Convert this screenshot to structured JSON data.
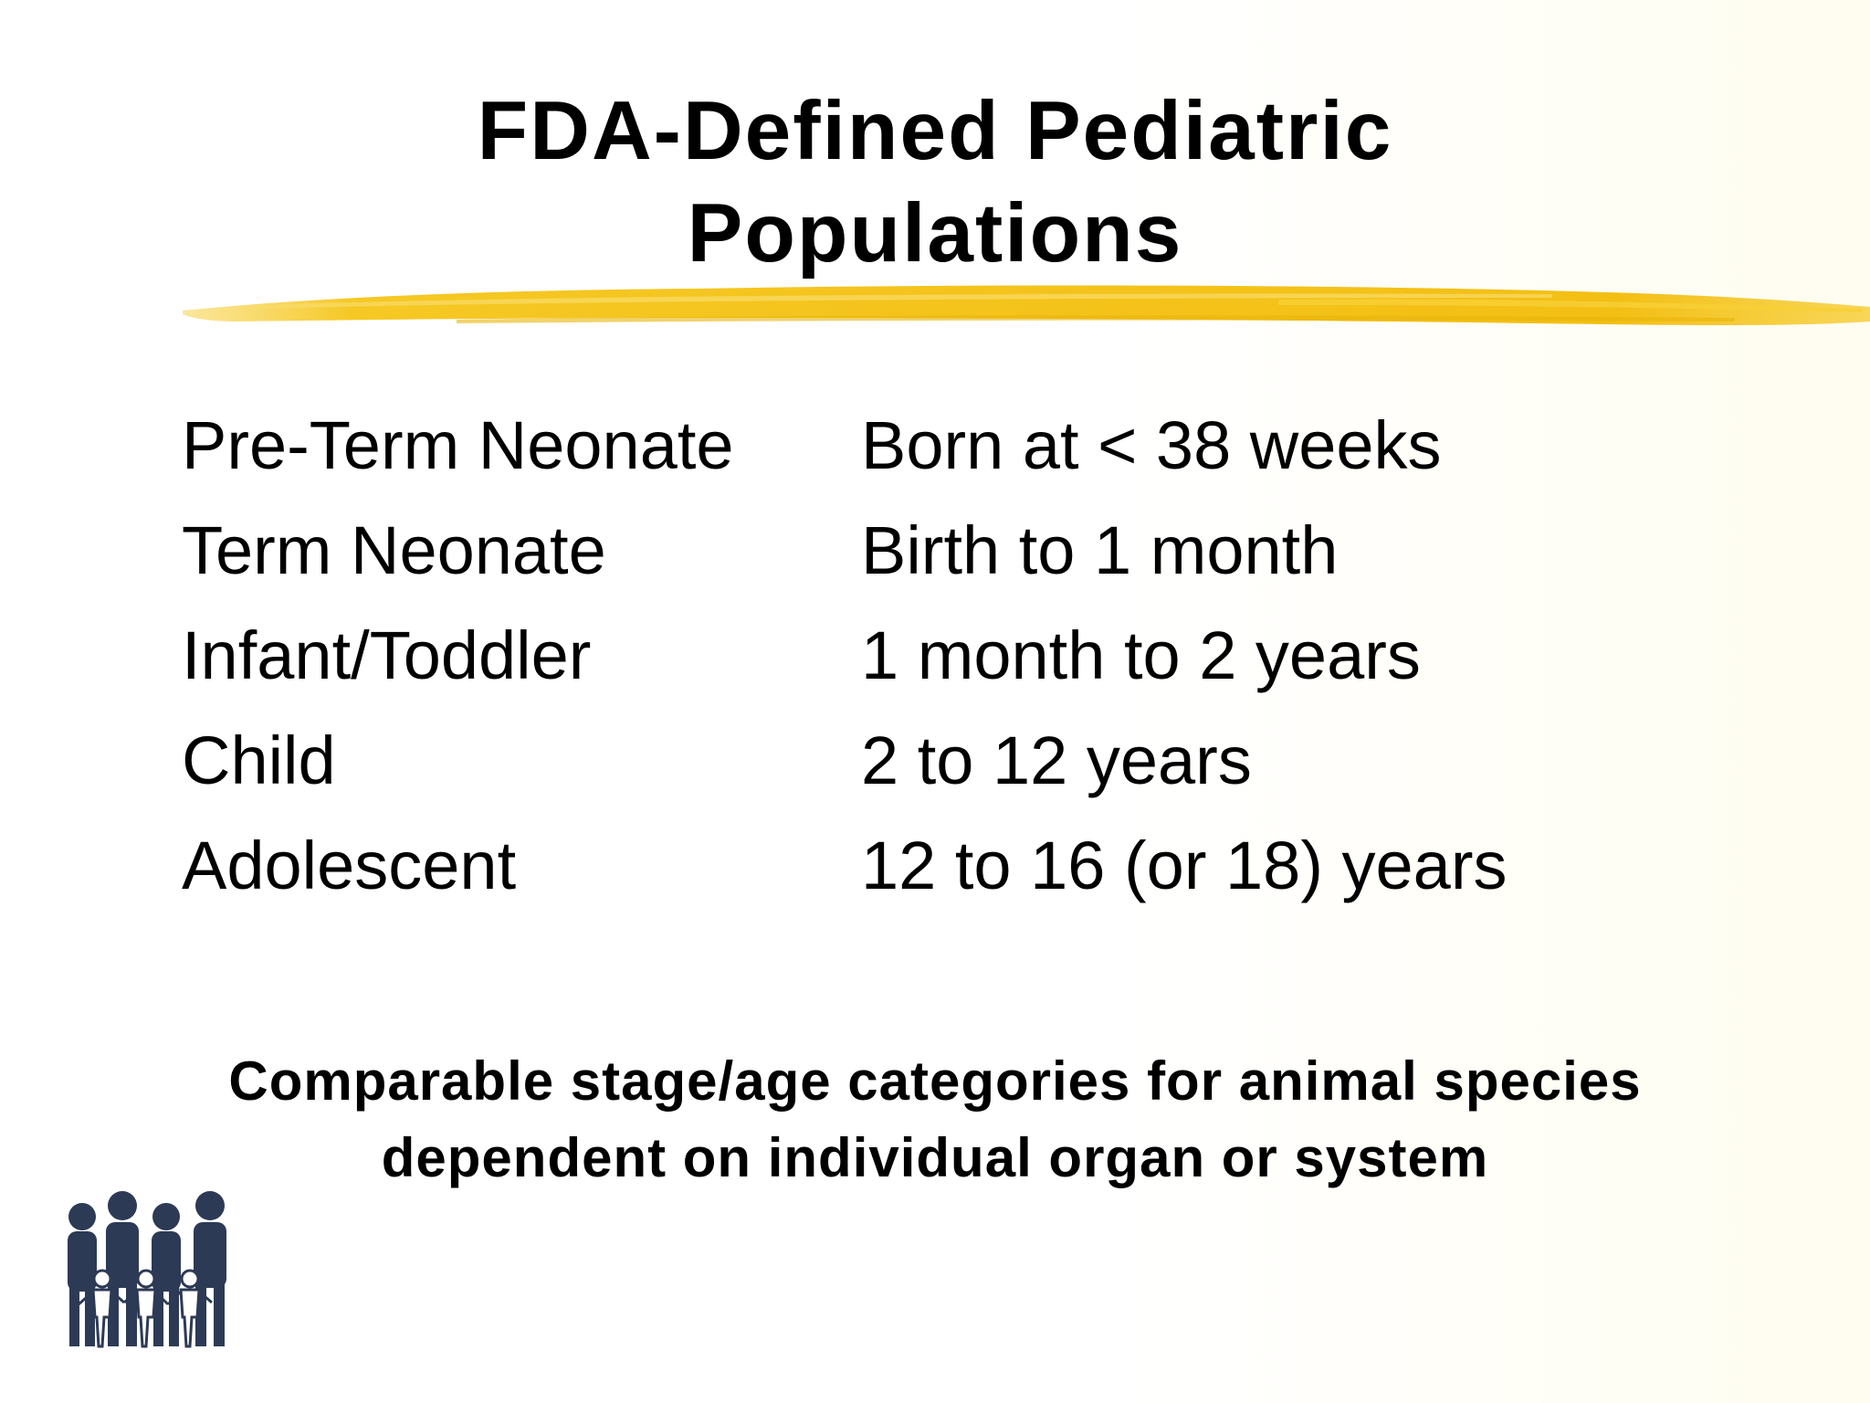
{
  "slide": {
    "title_line1": "FDA-Defined Pediatric",
    "title_line2": "Populations",
    "rows": [
      {
        "term": "Pre-Term Neonate",
        "definition": "Born at < 38 weeks"
      },
      {
        "term": "Term Neonate",
        "definition": "Birth to 1 month"
      },
      {
        "term": "Infant/Toddler",
        "definition": "1 month to 2 years"
      },
      {
        "term": "Child",
        "definition": "2 to 12 years"
      },
      {
        "term": "Adolescent",
        "definition": "12 to 16 (or 18) years"
      }
    ],
    "note_line1": "Comparable stage/age categories for animal species",
    "note_line2": "dependent on individual organ or system",
    "accent_color": "#f5c518",
    "logo_color": "#2c3a55",
    "logo_icon": "family-figures-icon"
  }
}
